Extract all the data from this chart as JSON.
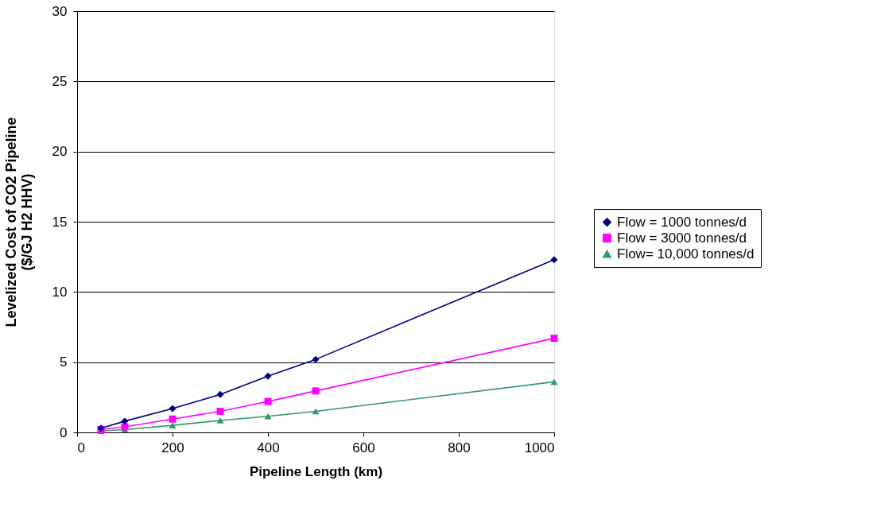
{
  "chart_data": {
    "type": "line",
    "xlabel": "Pipeline Length (km)",
    "ylabel": "Levelized Cost of CO2 Pipeline\n($/GJ H2 HHV)",
    "x": [
      50,
      100,
      200,
      300,
      400,
      500,
      1000
    ],
    "series": [
      {
        "name": "Flow = 1000 tonnes/d",
        "color": "#000080",
        "marker": "diamond",
        "values": [
          0.3,
          0.8,
          1.7,
          2.7,
          4.0,
          5.2,
          12.3
        ]
      },
      {
        "name": "Flow = 3000 tonnes/d",
        "color": "#ff00ff",
        "marker": "square",
        "values": [
          0.2,
          0.4,
          0.95,
          1.5,
          2.2,
          2.95,
          6.7
        ]
      },
      {
        "name": "Flow= 10,000 tonnes/d",
        "color": "#339966",
        "marker": "triangle",
        "values": [
          0.1,
          0.2,
          0.5,
          0.85,
          1.15,
          1.5,
          3.6
        ]
      }
    ],
    "xlim": [
      0,
      1000
    ],
    "xticks": [
      0,
      200,
      400,
      600,
      800,
      1000
    ],
    "ylim": [
      0,
      30
    ],
    "yticks": [
      0,
      5,
      10,
      15,
      20,
      25,
      30
    ],
    "grid": "y",
    "legend": "right",
    "line_style": "solid"
  }
}
